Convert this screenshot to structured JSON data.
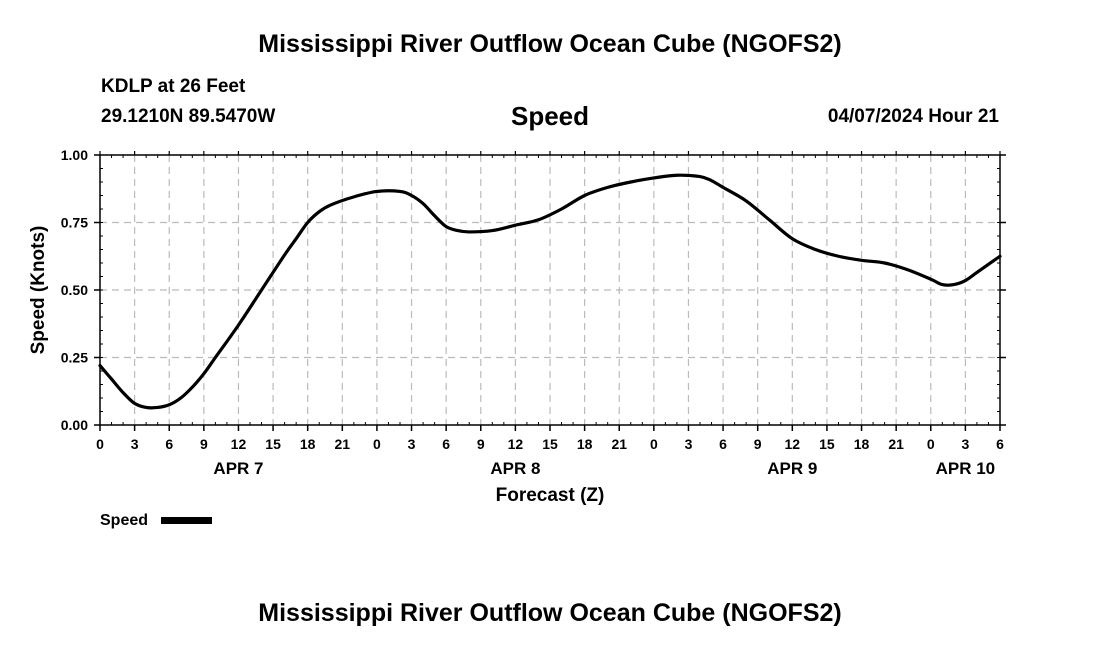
{
  "header": {
    "title": "Mississippi River Outflow Ocean Cube (NGOFS2)",
    "station": "KDLP at 26 Feet",
    "coordinates": "29.1210N  89.5470W",
    "chart_title": "Speed",
    "timestamp": "04/07/2024 Hour 21"
  },
  "footer": {
    "title": "Mississippi River Outflow Ocean Cube (NGOFS2)"
  },
  "colors": {
    "line": "#000000",
    "grid": "#bbbbbb",
    "background": "#ffffff"
  },
  "chart_data": {
    "type": "line",
    "title": "Speed",
    "xlabel": "Forecast (Z)",
    "ylabel": "Speed (Knots)",
    "xlim": [
      0,
      78
    ],
    "ylim": [
      0,
      1
    ],
    "x_major_step": 3,
    "yticks": [
      0,
      0.25,
      0.5,
      0.75,
      1.0
    ],
    "ytick_labels": [
      "0.00",
      "0.25",
      "0.50",
      "0.75",
      "1.00"
    ],
    "xtick_labels": [
      "0",
      "3",
      "6",
      "9",
      "12",
      "15",
      "18",
      "21",
      "0",
      "3",
      "6",
      "9",
      "12",
      "15",
      "18",
      "21",
      "0",
      "3",
      "6",
      "9",
      "12",
      "15",
      "18",
      "21",
      "0",
      "3",
      "6"
    ],
    "date_labels": [
      {
        "label": "APR 7",
        "x": 12
      },
      {
        "label": "APR 8",
        "x": 36
      },
      {
        "label": "APR 9",
        "x": 60
      },
      {
        "label": "APR 10",
        "x": 75
      }
    ],
    "grid": true,
    "legend": {
      "position": "bottom-left",
      "entries": [
        "Speed"
      ]
    },
    "series": [
      {
        "name": "Speed",
        "x": [
          0,
          1,
          2,
          3,
          4,
          5,
          6,
          7,
          8,
          9,
          10,
          12,
          14,
          16,
          17,
          18,
          19,
          20,
          22,
          24,
          26,
          27,
          28,
          29,
          30,
          31,
          32,
          34,
          36,
          38,
          40,
          42,
          44,
          46,
          48,
          50,
          52,
          53,
          54,
          56,
          58,
          60,
          62,
          64,
          66,
          68,
          70,
          72,
          73,
          74,
          75,
          76,
          77,
          78
        ],
        "values": [
          0.22,
          0.17,
          0.12,
          0.08,
          0.065,
          0.065,
          0.075,
          0.1,
          0.14,
          0.19,
          0.25,
          0.37,
          0.5,
          0.63,
          0.69,
          0.75,
          0.79,
          0.815,
          0.845,
          0.865,
          0.865,
          0.85,
          0.82,
          0.775,
          0.735,
          0.72,
          0.715,
          0.72,
          0.74,
          0.76,
          0.8,
          0.85,
          0.88,
          0.9,
          0.915,
          0.925,
          0.92,
          0.905,
          0.88,
          0.83,
          0.76,
          0.69,
          0.65,
          0.625,
          0.61,
          0.6,
          0.575,
          0.54,
          0.52,
          0.52,
          0.535,
          0.565,
          0.595,
          0.625
        ]
      }
    ]
  }
}
